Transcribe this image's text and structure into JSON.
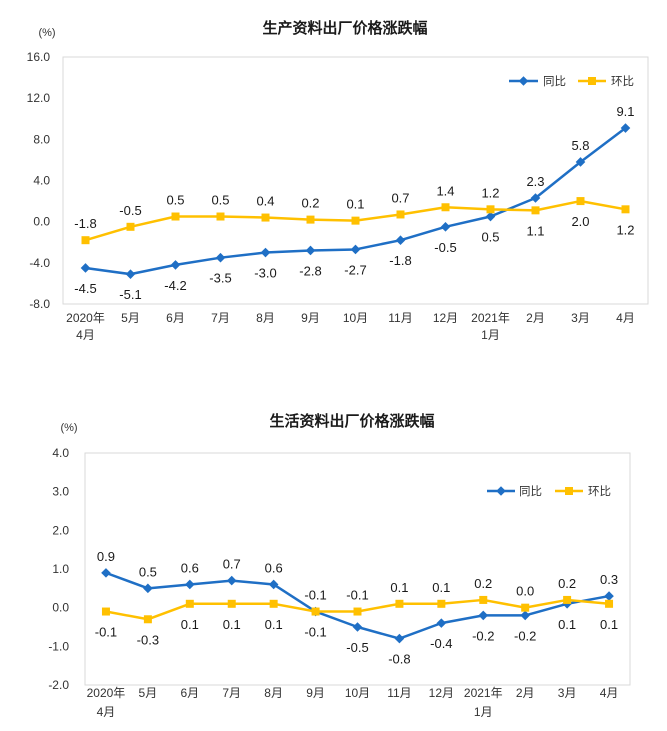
{
  "chart_data": [
    {
      "type": "line",
      "title": "生产资料出厂价格涨跌幅",
      "xlabel": "",
      "ylabel": "(%)",
      "categories": [
        "2020年\n4月",
        "5月",
        "6月",
        "7月",
        "8月",
        "9月",
        "10月",
        "11月",
        "12月",
        "2021年\n1月",
        "2月",
        "3月",
        "4月"
      ],
      "series": [
        {
          "name": "同比",
          "color": "#1f6fc5",
          "marker": "diamond",
          "values": [
            -4.5,
            -5.1,
            -4.2,
            -3.5,
            -3.0,
            -2.8,
            -2.7,
            -1.8,
            -0.5,
            0.5,
            2.3,
            5.8,
            9.1
          ]
        },
        {
          "name": "环比",
          "color": "#ffc000",
          "marker": "square",
          "values": [
            -1.8,
            -0.5,
            0.5,
            0.5,
            0.4,
            0.2,
            0.1,
            0.7,
            1.4,
            1.2,
            1.1,
            2.0,
            1.2
          ]
        }
      ],
      "ylim": [
        -8,
        16
      ],
      "yticks": [
        16,
        12,
        8,
        4,
        0,
        -4,
        -8
      ],
      "tick_decimals": 1,
      "grid": false,
      "data_labels": true,
      "legend": "top-right"
    },
    {
      "type": "line",
      "title": "生活资料出厂价格涨跌幅",
      "xlabel": "",
      "ylabel": "(%)",
      "categories": [
        "2020年\n4月",
        "5月",
        "6月",
        "7月",
        "8月",
        "9月",
        "10月",
        "11月",
        "12月",
        "2021年\n1月",
        "2月",
        "3月",
        "4月"
      ],
      "series": [
        {
          "name": "同比",
          "color": "#1f6fc5",
          "marker": "diamond",
          "values": [
            0.9,
            0.5,
            0.6,
            0.7,
            0.6,
            -0.1,
            -0.5,
            -0.8,
            -0.4,
            -0.2,
            -0.2,
            0.1,
            0.3
          ]
        },
        {
          "name": "环比",
          "color": "#ffc000",
          "marker": "square",
          "values": [
            -0.1,
            -0.3,
            0.1,
            0.1,
            0.1,
            -0.1,
            -0.1,
            0.1,
            0.1,
            0.2,
            0.0,
            0.2,
            0.1
          ]
        }
      ],
      "ylim": [
        -2,
        4
      ],
      "yticks": [
        4,
        3,
        2,
        1,
        0,
        -1,
        -2
      ],
      "tick_decimals": 1,
      "grid": false,
      "data_labels": true,
      "legend": "top-right"
    }
  ]
}
